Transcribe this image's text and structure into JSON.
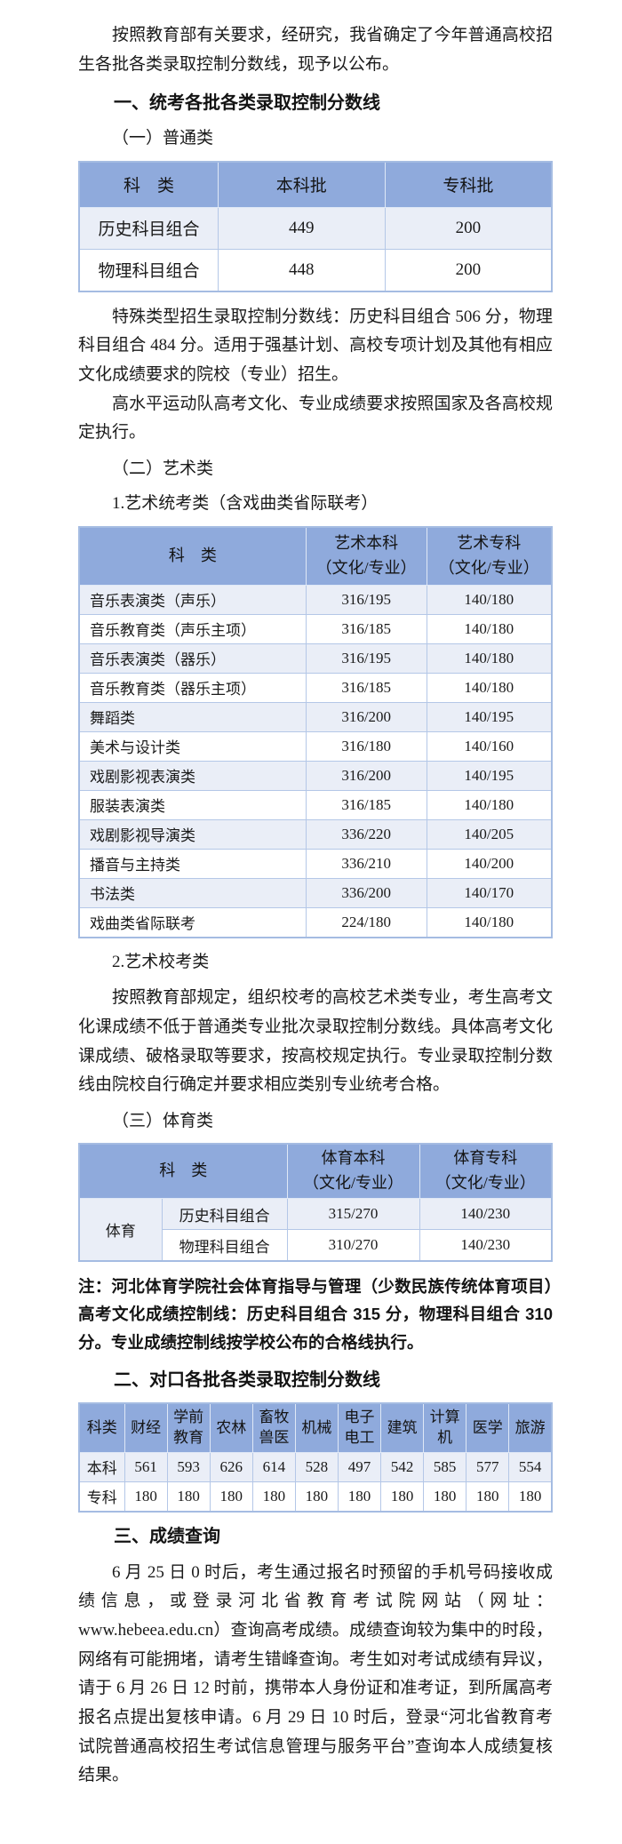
{
  "intro": "按照教育部有关要求，经研究，我省确定了今年普通高校招生各批各类录取控制分数线，现予以公布。",
  "section1": {
    "title": "一、统考各批各类录取控制分数线",
    "general": {
      "title": "（一）普通类",
      "table": {
        "headers": [
          "科　类",
          "本科批",
          "专科批"
        ],
        "rows": [
          [
            "历史科目组合",
            "449",
            "200"
          ],
          [
            "物理科目组合",
            "448",
            "200"
          ]
        ]
      }
    },
    "special_para": "特殊类型招生录取控制分数线：历史科目组合 506 分，物理科目组合 484 分。适用于强基计划、高校专项计划及其他有相应文化成绩要求的院校（专业）招生。",
    "sports_team_para": "高水平运动队高考文化、专业成绩要求按照国家及各高校规定执行。",
    "art": {
      "title": "（二）艺术类",
      "unified_title": "1.艺术统考类（含戏曲类省际联考）",
      "table": {
        "headers": [
          "科　类",
          "艺术本科\n（文化/专业）",
          "艺术专科\n（文化/专业）"
        ],
        "rows": [
          [
            "音乐表演类（声乐）",
            "316/195",
            "140/180"
          ],
          [
            "音乐教育类（声乐主项）",
            "316/185",
            "140/180"
          ],
          [
            "音乐表演类（器乐）",
            "316/195",
            "140/180"
          ],
          [
            "音乐教育类（器乐主项）",
            "316/185",
            "140/180"
          ],
          [
            "舞蹈类",
            "316/200",
            "140/195"
          ],
          [
            "美术与设计类",
            "316/180",
            "140/160"
          ],
          [
            "戏剧影视表演类",
            "316/200",
            "140/195"
          ],
          [
            "服装表演类",
            "316/185",
            "140/180"
          ],
          [
            "戏剧影视导演类",
            "336/220",
            "140/205"
          ],
          [
            "播音与主持类",
            "336/210",
            "140/200"
          ],
          [
            "书法类",
            "336/200",
            "140/170"
          ],
          [
            "戏曲类省际联考",
            "224/180",
            "140/180"
          ]
        ]
      },
      "school_exam_title": "2.艺术校考类",
      "school_exam_para": "按照教育部规定，组织校考的高校艺术类专业，考生高考文化课成绩不低于普通类专业批次录取控制分数线。具体高考文化课成绩、破格录取等要求，按高校规定执行。专业录取控制分数线由院校自行确定并要求相应类别专业统考合格。"
    },
    "pe": {
      "title": "（三）体育类",
      "table": {
        "header_category": "科　类",
        "header_undergrad": "体育本科\n（文化/专业）",
        "header_college": "体育专科\n（文化/专业）",
        "group": "体育",
        "rows": [
          [
            "历史科目组合",
            "315/270",
            "140/230"
          ],
          [
            "物理科目组合",
            "310/270",
            "140/230"
          ]
        ]
      },
      "note": "注：河北体育学院社会体育指导与管理（少数民族传统体育项目）高考文化成绩控制线：历史科目组合 315 分，物理科目组合 310 分。专业成绩控制线按学校公布的合格线执行。"
    }
  },
  "section2": {
    "title": "二、对口各批各类录取控制分数线",
    "table": {
      "headers": [
        "科类",
        "财经",
        "学前教育",
        "农林",
        "畜牧兽医",
        "机械",
        "电子电工",
        "建筑",
        "计算机",
        "医学",
        "旅游"
      ],
      "rows": [
        [
          "本科",
          "561",
          "593",
          "626",
          "614",
          "528",
          "497",
          "542",
          "585",
          "577",
          "554"
        ],
        [
          "专科",
          "180",
          "180",
          "180",
          "180",
          "180",
          "180",
          "180",
          "180",
          "180",
          "180"
        ]
      ]
    }
  },
  "section3": {
    "title": "三、成绩查询",
    "para": "6 月 25 日 0 时后，考生通过报名时预留的手机号码接收成绩信息，或登录河北省教育考试院网站（网址：www.hebeea.edu.cn）查询高考成绩。成绩查询较为集中的时段，网络有可能拥堵，请考生错峰查询。考生如对考试成绩有异议，请于 6 月 26 日 12 时前，携带本人身份证和准考证，到所属高考报名点提出复核申请。6 月 29 日 10 时后，登录“河北省教育考试院普通高校招生考试信息管理与服务平台”查询本人成绩复核结果。"
  }
}
